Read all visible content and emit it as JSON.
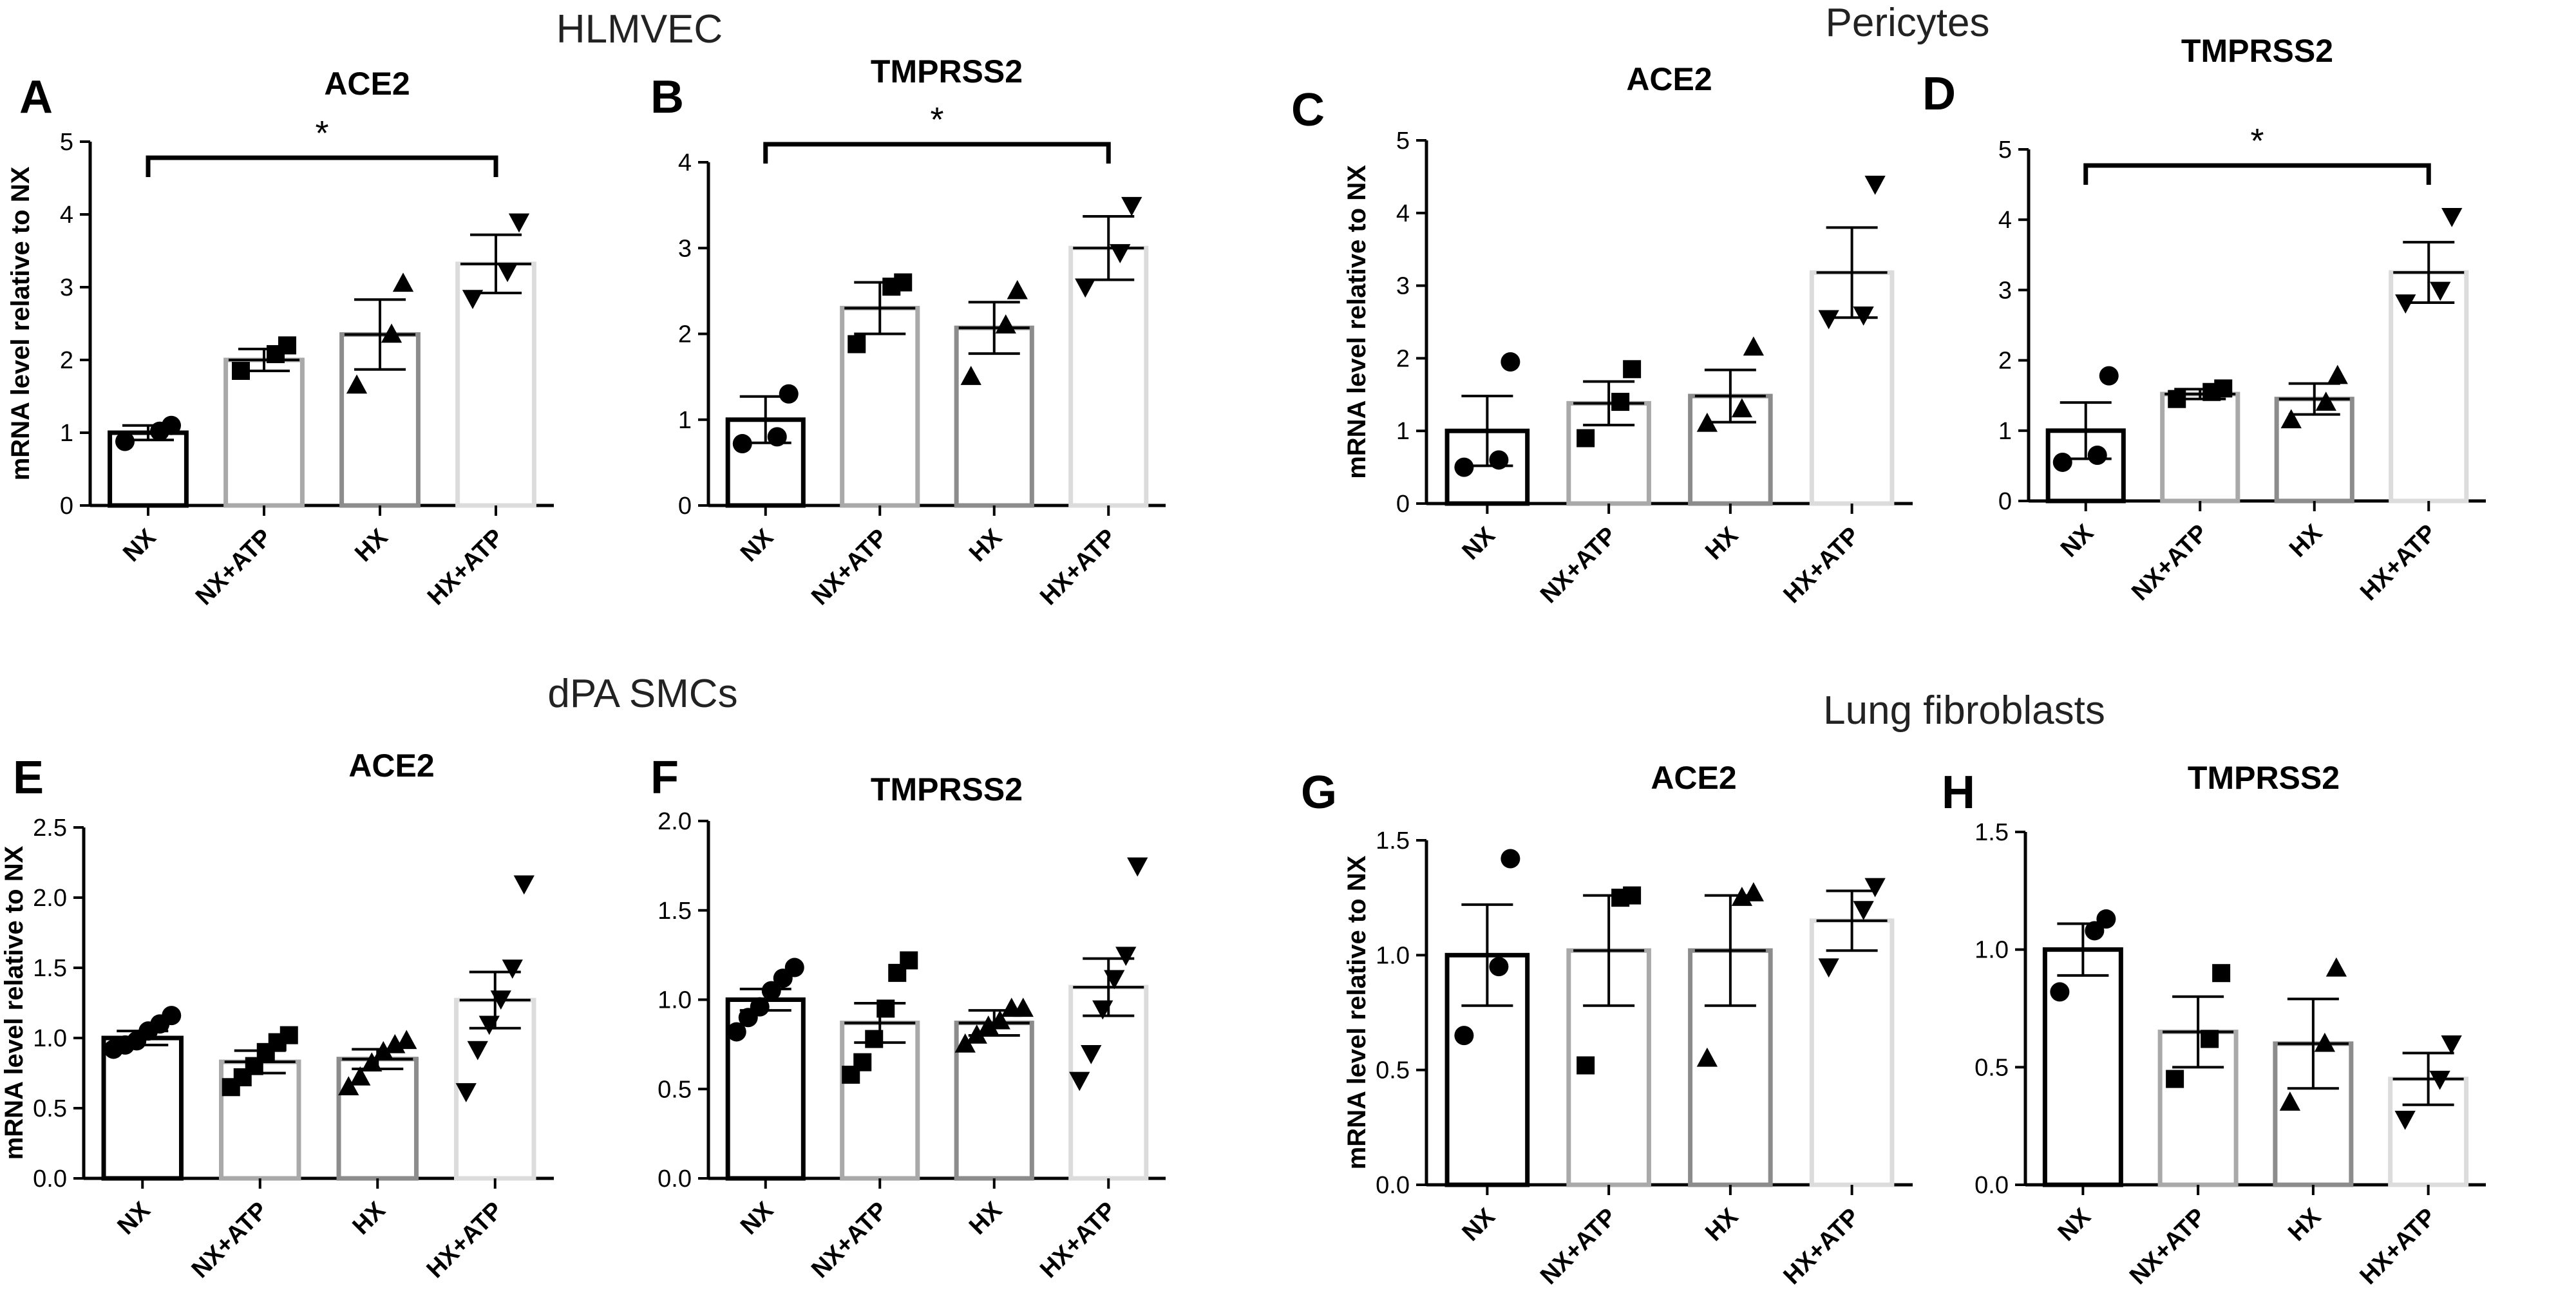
{
  "groups": [
    {
      "title": "HLMVEC"
    },
    {
      "title": "Pericytes"
    },
    {
      "title": "dPA SMCs"
    },
    {
      "title": "Lung fibroblasts"
    }
  ],
  "ylabel": "mRNA level relative to NX",
  "categories": [
    "NX",
    "NX+ATP",
    "HX",
    "HX+ATP"
  ],
  "bar_colors": [
    "#000000",
    "#a9a9a9",
    "#8c8c8c",
    "#dcdcdc"
  ],
  "markers": [
    "circle",
    "square",
    "triangle-up",
    "triangle-down"
  ],
  "chart_data": [
    {
      "panel": "A",
      "type": "bar",
      "title": "ACE2",
      "categories": [
        "NX",
        "NX+ATP",
        "HX",
        "HX+ATP"
      ],
      "values": [
        1.0,
        2.0,
        2.35,
        3.32
      ],
      "sem": [
        0.1,
        0.15,
        0.48,
        0.4
      ],
      "points": [
        [
          0.88,
          1.02,
          1.1
        ],
        [
          1.85,
          2.08,
          2.2
        ],
        [
          1.65,
          2.35,
          3.05
        ],
        [
          2.85,
          3.22,
          3.9
        ]
      ],
      "ylim": [
        0,
        5
      ],
      "yticks": [
        0,
        1,
        2,
        3,
        4,
        5
      ],
      "significance": {
        "from": "NX",
        "to": "HX+ATP",
        "label": "*"
      }
    },
    {
      "panel": "B",
      "type": "bar",
      "title": "TMPRSS2",
      "categories": [
        "NX",
        "NX+ATP",
        "HX",
        "HX+ATP"
      ],
      "values": [
        1.0,
        2.3,
        2.07,
        3.0
      ],
      "sem": [
        0.27,
        0.3,
        0.3,
        0.37
      ],
      "points": [
        [
          0.72,
          0.8,
          1.3
        ],
        [
          1.88,
          2.55,
          2.6
        ],
        [
          1.5,
          2.1,
          2.5
        ],
        [
          2.55,
          2.95,
          3.5
        ]
      ],
      "ylim": [
        0,
        4
      ],
      "yticks": [
        0,
        1,
        2,
        3,
        4
      ],
      "significance": {
        "from": "NX",
        "to": "HX+ATP",
        "label": "*"
      }
    },
    {
      "panel": "C",
      "type": "bar",
      "title": "ACE2",
      "categories": [
        "NX",
        "NX+ATP",
        "HX",
        "HX+ATP"
      ],
      "values": [
        1.0,
        1.38,
        1.48,
        3.18
      ],
      "sem": [
        0.48,
        0.3,
        0.36,
        0.62
      ],
      "points": [
        [
          0.5,
          0.6,
          1.95
        ],
        [
          0.9,
          1.4,
          1.85
        ],
        [
          1.1,
          1.3,
          2.15
        ],
        [
          2.55,
          2.6,
          4.4
        ]
      ],
      "ylim": [
        0,
        5
      ],
      "yticks": [
        0,
        1,
        2,
        3,
        4,
        5
      ]
    },
    {
      "panel": "D",
      "type": "bar",
      "title": "TMPRSS2",
      "categories": [
        "NX",
        "NX+ATP",
        "HX",
        "HX+ATP"
      ],
      "values": [
        1.0,
        1.52,
        1.45,
        3.25
      ],
      "sem": [
        0.4,
        0.07,
        0.22,
        0.43
      ],
      "points": [
        [
          0.55,
          0.65,
          1.78
        ],
        [
          1.45,
          1.55,
          1.6
        ],
        [
          1.15,
          1.4,
          1.78
        ],
        [
          2.82,
          3.0,
          4.05
        ]
      ],
      "ylim": [
        0,
        5
      ],
      "yticks": [
        0,
        1,
        2,
        3,
        4,
        5
      ],
      "significance": {
        "from": "NX",
        "to": "HX+ATP",
        "label": "*"
      }
    },
    {
      "panel": "E",
      "type": "bar",
      "title": "ACE2",
      "categories": [
        "NX",
        "NX+ATP",
        "HX",
        "HX+ATP"
      ],
      "values": [
        1.0,
        0.83,
        0.85,
        1.27
      ],
      "sem": [
        0.05,
        0.08,
        0.07,
        0.2
      ],
      "points": [
        [
          0.92,
          0.95,
          0.98,
          1.05,
          1.1,
          1.16
        ],
        [
          0.65,
          0.72,
          0.8,
          0.9,
          0.97,
          1.02
        ],
        [
          0.65,
          0.72,
          0.82,
          0.9,
          0.95,
          0.98
        ],
        [
          0.62,
          0.92,
          1.1,
          1.28,
          1.5,
          2.1
        ]
      ],
      "ylim": [
        0,
        2.5
      ],
      "yticks": [
        0.0,
        0.5,
        1.0,
        1.5,
        2.0,
        2.5
      ]
    },
    {
      "panel": "F",
      "type": "bar",
      "title": "TMPRSS2",
      "categories": [
        "NX",
        "NX+ATP",
        "HX",
        "HX+ATP"
      ],
      "values": [
        1.0,
        0.87,
        0.87,
        1.07
      ],
      "sem": [
        0.06,
        0.11,
        0.07,
        0.16
      ],
      "points": [
        [
          0.82,
          0.9,
          0.96,
          1.05,
          1.12,
          1.18
        ],
        [
          0.58,
          0.65,
          0.78,
          0.95,
          1.15,
          1.22
        ],
        [
          0.75,
          0.8,
          0.85,
          0.88,
          0.95,
          0.95
        ],
        [
          0.55,
          0.7,
          0.95,
          1.12,
          1.25,
          1.75
        ]
      ],
      "ylim": [
        0,
        2.0
      ],
      "yticks": [
        0.0,
        0.5,
        1.0,
        1.5,
        2.0
      ]
    },
    {
      "panel": "G",
      "type": "bar",
      "title": "ACE2",
      "categories": [
        "NX",
        "NX+ATP",
        "HX",
        "HX+ATP"
      ],
      "values": [
        1.0,
        1.02,
        1.02,
        1.15
      ],
      "sem": [
        0.22,
        0.24,
        0.24,
        0.13
      ],
      "points": [
        [
          0.65,
          0.95,
          1.42
        ],
        [
          0.52,
          1.25,
          1.26
        ],
        [
          0.55,
          1.25,
          1.27
        ],
        [
          0.95,
          1.2,
          1.3
        ]
      ],
      "ylim": [
        0,
        1.5
      ],
      "yticks": [
        0.0,
        0.5,
        1.0,
        1.5
      ]
    },
    {
      "panel": "H",
      "type": "bar",
      "title": "TMPRSS2",
      "categories": [
        "NX",
        "NX+ATP",
        "HX",
        "HX+ATP"
      ],
      "values": [
        1.0,
        0.65,
        0.6,
        0.45
      ],
      "sem": [
        0.11,
        0.15,
        0.19,
        0.11
      ],
      "points": [
        [
          0.82,
          1.08,
          1.13
        ],
        [
          0.45,
          0.62,
          0.9
        ],
        [
          0.35,
          0.6,
          0.92
        ],
        [
          0.28,
          0.45,
          0.6
        ]
      ],
      "ylim": [
        0,
        1.5
      ],
      "yticks": [
        0.0,
        0.5,
        1.0,
        1.5
      ]
    }
  ]
}
